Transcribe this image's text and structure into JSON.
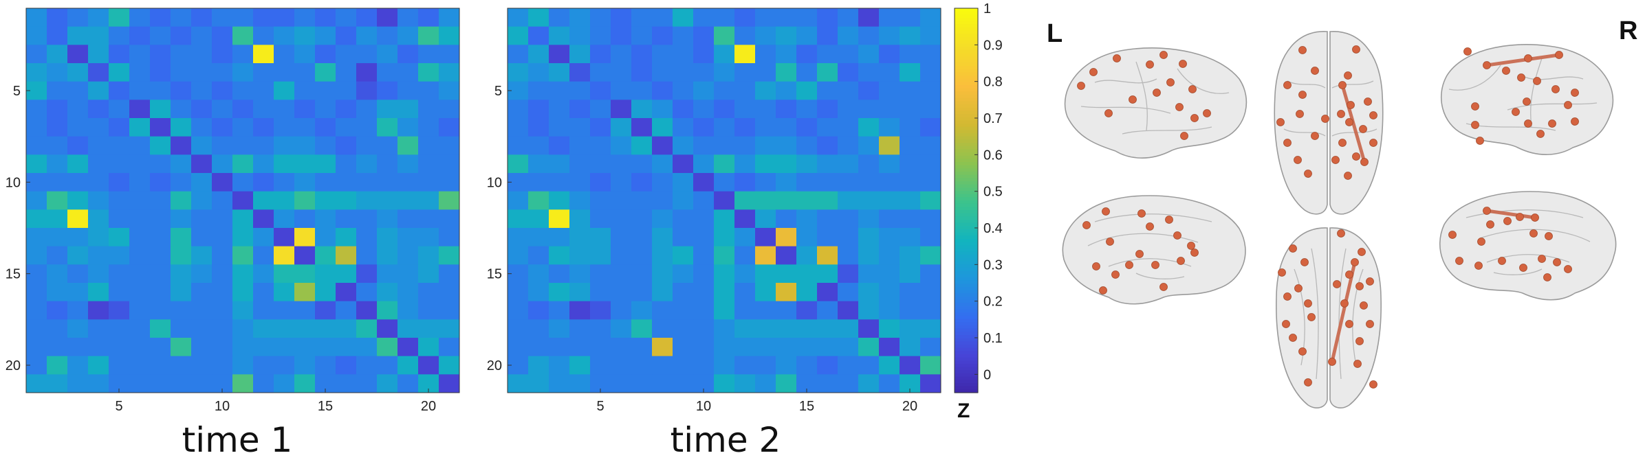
{
  "chart_data": [
    {
      "type": "heatmap",
      "title": "",
      "xlabel": "time 1",
      "ylabel": "",
      "size": 21,
      "x_ticks": [
        5,
        10,
        15,
        20
      ],
      "y_ticks": [
        5,
        10,
        15,
        20
      ],
      "values": [
        [
          0.25,
          0.15,
          0.2,
          0.25,
          0.4,
          0.2,
          0.15,
          0.2,
          0.15,
          0.2,
          0.2,
          0.15,
          0.15,
          0.2,
          0.15,
          0.2,
          0.15,
          0.05,
          0.2,
          0.15,
          0.25
        ],
        [
          0.25,
          0.15,
          0.3,
          0.3,
          0.2,
          0.15,
          0.2,
          0.15,
          0.2,
          0.15,
          0.45,
          0.2,
          0.25,
          0.3,
          0.25,
          0.15,
          0.25,
          0.2,
          0.25,
          0.45,
          0.35
        ],
        [
          0.2,
          0.3,
          0.05,
          0.3,
          0.15,
          0.2,
          0.15,
          0.2,
          0.2,
          0.15,
          0.2,
          0.95,
          0.2,
          0.25,
          0.15,
          0.2,
          0.2,
          0.25,
          0.15,
          0.2,
          0.2
        ],
        [
          0.3,
          0.25,
          0.3,
          0.1,
          0.35,
          0.2,
          0.15,
          0.2,
          0.2,
          0.2,
          0.25,
          0.2,
          0.2,
          0.2,
          0.4,
          0.2,
          0.05,
          0.2,
          0.2,
          0.4,
          0.3
        ],
        [
          0.35,
          0.2,
          0.2,
          0.3,
          0.15,
          0.2,
          0.2,
          0.15,
          0.2,
          0.15,
          0.2,
          0.2,
          0.35,
          0.2,
          0.2,
          0.2,
          0.1,
          0.15,
          0.2,
          0.2,
          0.25
        ],
        [
          0.2,
          0.15,
          0.2,
          0.15,
          0.2,
          0.05,
          0.35,
          0.2,
          0.15,
          0.2,
          0.15,
          0.2,
          0.2,
          0.15,
          0.2,
          0.15,
          0.2,
          0.3,
          0.3,
          0.2,
          0.2
        ],
        [
          0.2,
          0.15,
          0.2,
          0.2,
          0.15,
          0.35,
          0.05,
          0.35,
          0.2,
          0.15,
          0.2,
          0.15,
          0.2,
          0.2,
          0.15,
          0.2,
          0.2,
          0.4,
          0.25,
          0.2,
          0.15
        ],
        [
          0.2,
          0.2,
          0.15,
          0.2,
          0.2,
          0.2,
          0.35,
          0.05,
          0.25,
          0.2,
          0.2,
          0.2,
          0.25,
          0.25,
          0.2,
          0.15,
          0.2,
          0.2,
          0.45,
          0.2,
          0.2
        ],
        [
          0.35,
          0.25,
          0.35,
          0.2,
          0.2,
          0.2,
          0.2,
          0.25,
          0.05,
          0.25,
          0.4,
          0.25,
          0.35,
          0.35,
          0.35,
          0.2,
          0.25,
          0.2,
          0.25,
          0.2,
          0.2
        ],
        [
          0.2,
          0.2,
          0.2,
          0.2,
          0.15,
          0.2,
          0.15,
          0.2,
          0.25,
          0.05,
          0.2,
          0.15,
          0.2,
          0.25,
          0.2,
          0.2,
          0.2,
          0.2,
          0.2,
          0.2,
          0.2
        ],
        [
          0.25,
          0.45,
          0.35,
          0.25,
          0.2,
          0.2,
          0.2,
          0.4,
          0.25,
          0.2,
          0.05,
          0.35,
          0.35,
          0.45,
          0.35,
          0.35,
          0.3,
          0.3,
          0.3,
          0.3,
          0.5
        ],
        [
          0.35,
          0.35,
          0.95,
          0.3,
          0.2,
          0.2,
          0.2,
          0.25,
          0.2,
          0.2,
          0.35,
          0.05,
          0.25,
          0.2,
          0.25,
          0.2,
          0.2,
          0.25,
          0.2,
          0.2,
          0.2
        ],
        [
          0.25,
          0.25,
          0.25,
          0.3,
          0.35,
          0.2,
          0.2,
          0.4,
          0.2,
          0.2,
          0.35,
          0.25,
          0.05,
          0.9,
          0.25,
          0.35,
          0.2,
          0.3,
          0.25,
          0.25,
          0.2
        ],
        [
          0.25,
          0.2,
          0.3,
          0.25,
          0.25,
          0.2,
          0.2,
          0.4,
          0.3,
          0.2,
          0.45,
          0.2,
          0.9,
          0.05,
          0.4,
          0.65,
          0.2,
          0.3,
          0.25,
          0.3,
          0.4
        ],
        [
          0.2,
          0.25,
          0.2,
          0.25,
          0.2,
          0.2,
          0.2,
          0.3,
          0.25,
          0.2,
          0.35,
          0.25,
          0.4,
          0.4,
          0.35,
          0.35,
          0.1,
          0.25,
          0.25,
          0.3,
          0.2
        ],
        [
          0.2,
          0.25,
          0.25,
          0.35,
          0.2,
          0.2,
          0.2,
          0.3,
          0.2,
          0.2,
          0.35,
          0.2,
          0.35,
          0.6,
          0.35,
          0.05,
          0.2,
          0.3,
          0.25,
          0.2,
          0.2
        ],
        [
          0.2,
          0.15,
          0.2,
          0.05,
          0.1,
          0.2,
          0.2,
          0.2,
          0.2,
          0.2,
          0.3,
          0.2,
          0.2,
          0.2,
          0.1,
          0.2,
          0.05,
          0.4,
          0.25,
          0.2,
          0.2
        ],
        [
          0.2,
          0.2,
          0.25,
          0.2,
          0.2,
          0.2,
          0.4,
          0.2,
          0.2,
          0.2,
          0.25,
          0.3,
          0.3,
          0.3,
          0.3,
          0.3,
          0.4,
          0.05,
          0.3,
          0.3,
          0.3
        ],
        [
          0.2,
          0.2,
          0.2,
          0.2,
          0.2,
          0.2,
          0.2,
          0.45,
          0.2,
          0.2,
          0.25,
          0.25,
          0.25,
          0.25,
          0.25,
          0.25,
          0.25,
          0.45,
          0.05,
          0.35,
          0.2
        ],
        [
          0.2,
          0.4,
          0.25,
          0.35,
          0.2,
          0.2,
          0.2,
          0.2,
          0.2,
          0.2,
          0.25,
          0.2,
          0.2,
          0.25,
          0.2,
          0.15,
          0.2,
          0.2,
          0.35,
          0.05,
          0.35
        ],
        [
          0.3,
          0.3,
          0.25,
          0.25,
          0.2,
          0.2,
          0.2,
          0.2,
          0.2,
          0.2,
          0.5,
          0.2,
          0.25,
          0.4,
          0.2,
          0.2,
          0.2,
          0.3,
          0.2,
          0.35,
          0.05
        ]
      ]
    },
    {
      "type": "heatmap",
      "title": "",
      "xlabel": "time 2",
      "ylabel": "",
      "size": 21,
      "x_ticks": [
        5,
        10,
        15,
        20
      ],
      "y_ticks": [
        5,
        10,
        15,
        20
      ],
      "values": [
        [
          0.25,
          0.35,
          0.2,
          0.25,
          0.2,
          0.15,
          0.2,
          0.2,
          0.35,
          0.2,
          0.2,
          0.15,
          0.2,
          0.2,
          0.2,
          0.15,
          0.2,
          0.05,
          0.2,
          0.2,
          0.25
        ],
        [
          0.35,
          0.15,
          0.3,
          0.25,
          0.2,
          0.15,
          0.2,
          0.15,
          0.2,
          0.15,
          0.45,
          0.2,
          0.25,
          0.3,
          0.25,
          0.15,
          0.25,
          0.2,
          0.25,
          0.3,
          0.25
        ],
        [
          0.2,
          0.3,
          0.05,
          0.3,
          0.15,
          0.2,
          0.15,
          0.2,
          0.2,
          0.15,
          0.3,
          0.95,
          0.2,
          0.25,
          0.15,
          0.2,
          0.2,
          0.25,
          0.15,
          0.2,
          0.2
        ],
        [
          0.3,
          0.25,
          0.3,
          0.1,
          0.2,
          0.2,
          0.15,
          0.2,
          0.2,
          0.2,
          0.25,
          0.2,
          0.2,
          0.4,
          0.2,
          0.4,
          0.15,
          0.2,
          0.2,
          0.35,
          0.2
        ],
        [
          0.25,
          0.2,
          0.2,
          0.2,
          0.15,
          0.2,
          0.2,
          0.15,
          0.2,
          0.25,
          0.2,
          0.2,
          0.3,
          0.25,
          0.35,
          0.2,
          0.2,
          0.15,
          0.2,
          0.2,
          0.2
        ],
        [
          0.2,
          0.15,
          0.2,
          0.15,
          0.2,
          0.05,
          0.3,
          0.25,
          0.15,
          0.2,
          0.15,
          0.2,
          0.2,
          0.15,
          0.2,
          0.15,
          0.2,
          0.2,
          0.2,
          0.2,
          0.2
        ],
        [
          0.2,
          0.15,
          0.2,
          0.2,
          0.15,
          0.3,
          0.05,
          0.35,
          0.2,
          0.15,
          0.2,
          0.15,
          0.2,
          0.2,
          0.15,
          0.2,
          0.2,
          0.35,
          0.25,
          0.2,
          0.15
        ],
        [
          0.2,
          0.2,
          0.15,
          0.2,
          0.2,
          0.25,
          0.35,
          0.05,
          0.25,
          0.2,
          0.2,
          0.2,
          0.25,
          0.25,
          0.2,
          0.15,
          0.2,
          0.25,
          0.65,
          0.2,
          0.2
        ],
        [
          0.4,
          0.25,
          0.25,
          0.2,
          0.2,
          0.2,
          0.2,
          0.25,
          0.05,
          0.25,
          0.4,
          0.25,
          0.35,
          0.35,
          0.3,
          0.25,
          0.25,
          0.2,
          0.25,
          0.2,
          0.2
        ],
        [
          0.2,
          0.2,
          0.2,
          0.2,
          0.15,
          0.2,
          0.15,
          0.2,
          0.25,
          0.05,
          0.2,
          0.15,
          0.2,
          0.25,
          0.2,
          0.2,
          0.2,
          0.2,
          0.2,
          0.2,
          0.2
        ],
        [
          0.25,
          0.45,
          0.35,
          0.25,
          0.2,
          0.2,
          0.2,
          0.2,
          0.25,
          0.2,
          0.05,
          0.4,
          0.4,
          0.4,
          0.4,
          0.4,
          0.3,
          0.3,
          0.3,
          0.3,
          0.4
        ],
        [
          0.35,
          0.35,
          0.95,
          0.3,
          0.2,
          0.2,
          0.2,
          0.25,
          0.2,
          0.2,
          0.35,
          0.05,
          0.3,
          0.2,
          0.25,
          0.2,
          0.2,
          0.25,
          0.2,
          0.2,
          0.2
        ],
        [
          0.25,
          0.25,
          0.25,
          0.3,
          0.3,
          0.2,
          0.2,
          0.3,
          0.2,
          0.2,
          0.35,
          0.25,
          0.05,
          0.75,
          0.25,
          0.2,
          0.2,
          0.3,
          0.25,
          0.25,
          0.2
        ],
        [
          0.25,
          0.2,
          0.35,
          0.3,
          0.3,
          0.2,
          0.2,
          0.3,
          0.35,
          0.2,
          0.4,
          0.2,
          0.75,
          0.05,
          0.3,
          0.7,
          0.2,
          0.3,
          0.25,
          0.3,
          0.4
        ],
        [
          0.2,
          0.25,
          0.2,
          0.25,
          0.2,
          0.2,
          0.2,
          0.3,
          0.25,
          0.2,
          0.35,
          0.25,
          0.35,
          0.35,
          0.35,
          0.35,
          0.1,
          0.25,
          0.25,
          0.3,
          0.2
        ],
        [
          0.2,
          0.25,
          0.35,
          0.3,
          0.2,
          0.2,
          0.2,
          0.3,
          0.2,
          0.2,
          0.35,
          0.2,
          0.35,
          0.7,
          0.35,
          0.05,
          0.2,
          0.3,
          0.25,
          0.2,
          0.2
        ],
        [
          0.2,
          0.15,
          0.2,
          0.05,
          0.1,
          0.2,
          0.25,
          0.2,
          0.2,
          0.2,
          0.35,
          0.2,
          0.2,
          0.2,
          0.1,
          0.2,
          0.05,
          0.3,
          0.25,
          0.2,
          0.2
        ],
        [
          0.2,
          0.2,
          0.25,
          0.2,
          0.2,
          0.25,
          0.4,
          0.2,
          0.2,
          0.2,
          0.25,
          0.3,
          0.3,
          0.3,
          0.3,
          0.3,
          0.3,
          0.05,
          0.35,
          0.3,
          0.3
        ],
        [
          0.2,
          0.2,
          0.2,
          0.2,
          0.2,
          0.2,
          0.2,
          0.7,
          0.2,
          0.2,
          0.25,
          0.25,
          0.25,
          0.25,
          0.25,
          0.25,
          0.25,
          0.4,
          0.05,
          0.3,
          0.2
        ],
        [
          0.2,
          0.3,
          0.25,
          0.35,
          0.2,
          0.2,
          0.2,
          0.2,
          0.2,
          0.2,
          0.25,
          0.2,
          0.2,
          0.25,
          0.2,
          0.15,
          0.2,
          0.2,
          0.35,
          0.05,
          0.45
        ],
        [
          0.3,
          0.3,
          0.25,
          0.25,
          0.2,
          0.2,
          0.2,
          0.2,
          0.2,
          0.2,
          0.35,
          0.3,
          0.25,
          0.4,
          0.2,
          0.2,
          0.2,
          0.3,
          0.2,
          0.35,
          0.05
        ]
      ]
    }
  ],
  "colorbar": {
    "label": "Z",
    "ticks": [
      1,
      0.9,
      0.8,
      0.7,
      0.6,
      0.5,
      0.4,
      0.3,
      0.2,
      0.1,
      0
    ],
    "tick_labels": [
      "1",
      "0.9",
      "0.8",
      "0.7",
      "0.6",
      "0.5",
      "0.4",
      "0.3",
      "0.2",
      "0.1",
      "0"
    ],
    "range": [
      -0.05,
      1.0
    ]
  },
  "brain": {
    "left_label": "L",
    "right_label": "R",
    "node_color": "#d4633f",
    "edge_color": "#c8664a",
    "views": [
      "left-lateral-top",
      "dorsal-top",
      "right-lateral-top",
      "left-medial-bottom",
      "ventral-bottom",
      "right-medial-bottom"
    ]
  }
}
